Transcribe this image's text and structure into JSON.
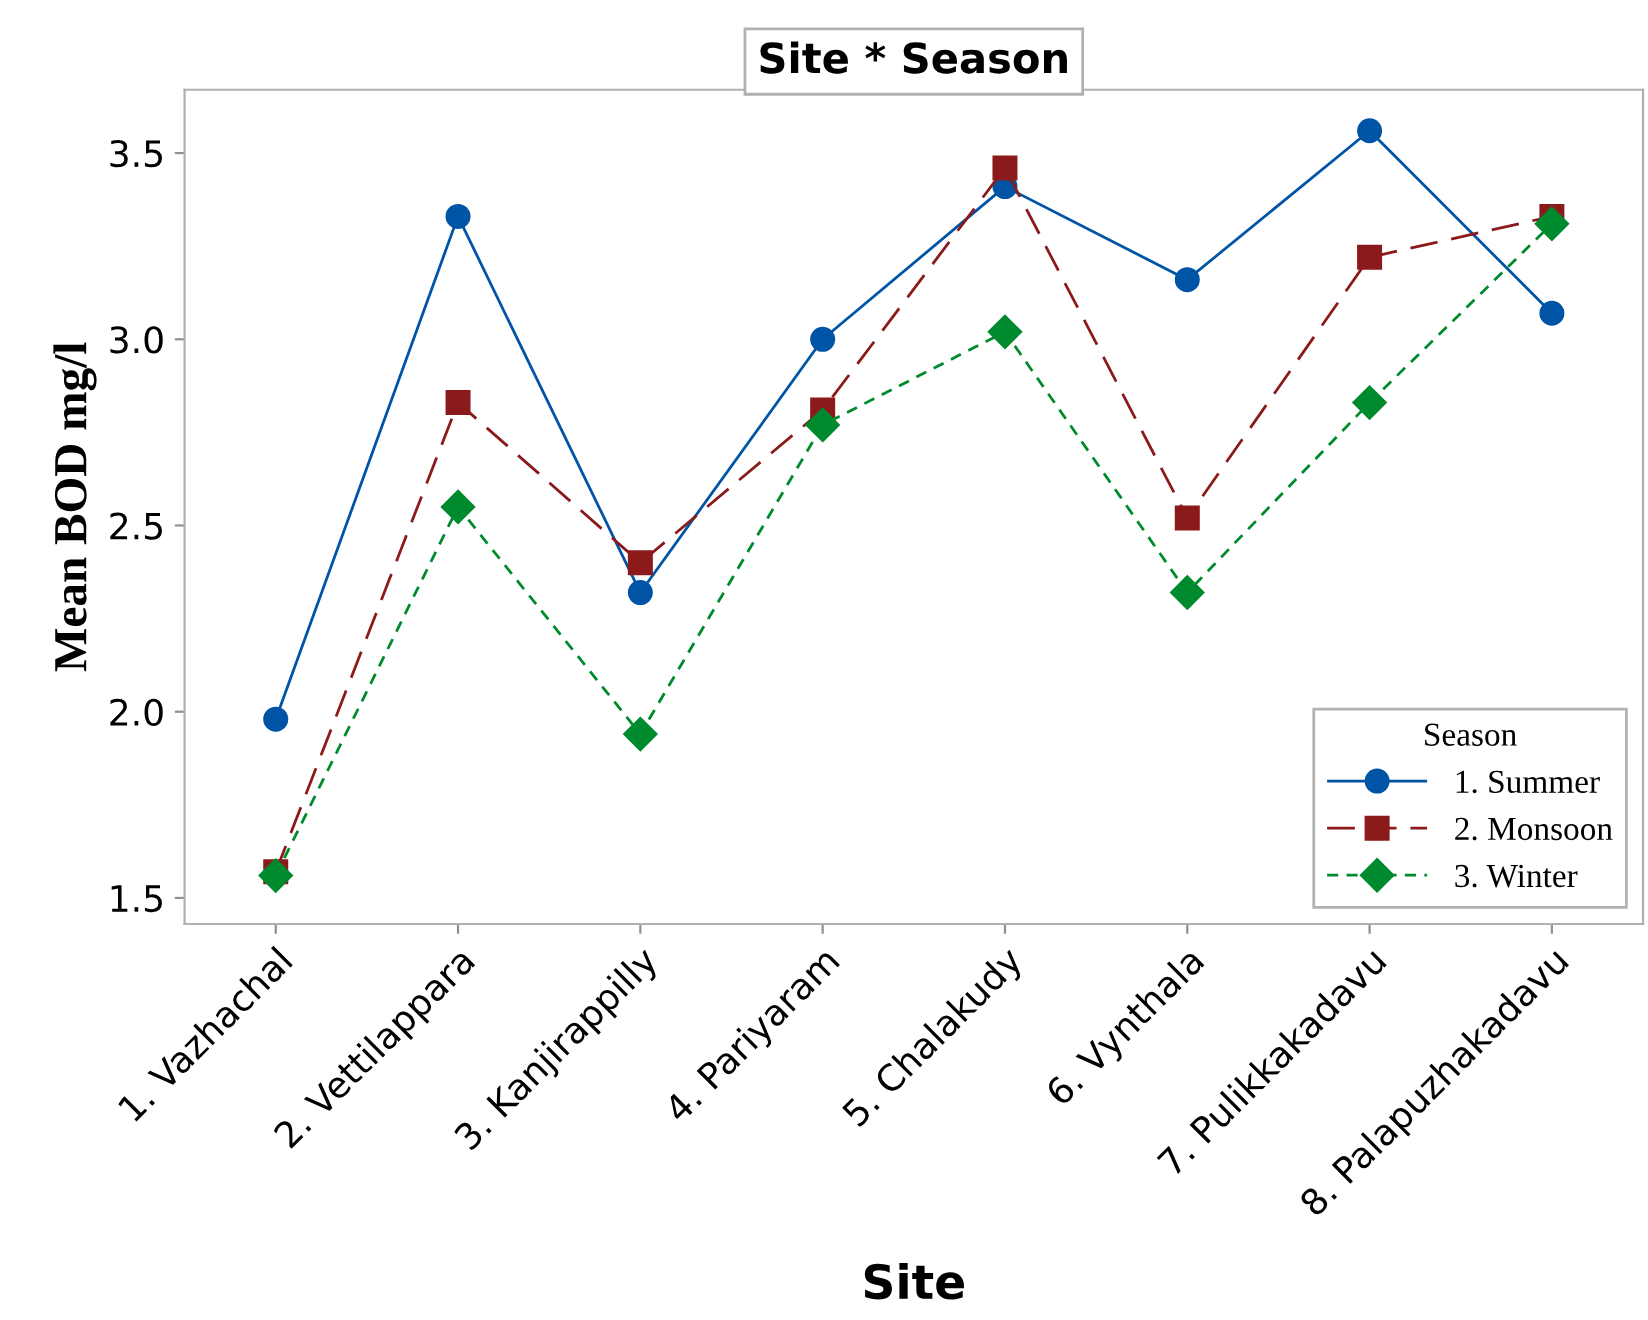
{
  "chart_data": {
    "type": "line",
    "title": "Site * Season",
    "xlabel": "Site",
    "ylabel": "Mean BOD mg/l",
    "legend_title": "Season",
    "categories": [
      "1. Vazhachal",
      "2. Vettilappara",
      "3. Kanjirappilly",
      "4. Pariyaram",
      "5. Chalakudy",
      "6. Vynthala",
      "7. Pulikkakadavu",
      "8. Palapuzhakadavu"
    ],
    "series": [
      {
        "name": "1. Summer",
        "color": "#0054a6",
        "marker": "circle",
        "line_style": "solid",
        "values": [
          1.98,
          3.33,
          2.32,
          3.0,
          3.41,
          3.16,
          3.56,
          3.07
        ]
      },
      {
        "name": "2. Monsoon",
        "color": "#8b1a1a",
        "marker": "square",
        "line_style": "dashed",
        "values": [
          1.57,
          2.83,
          2.4,
          2.81,
          3.46,
          2.52,
          3.22,
          3.33
        ]
      },
      {
        "name": "3. Winter",
        "color": "#008a2e",
        "marker": "diamond",
        "line_style": "dotted",
        "values": [
          1.56,
          2.55,
          1.94,
          2.77,
          3.02,
          2.32,
          2.83,
          3.31
        ]
      }
    ],
    "ylim": [
      1.43,
      3.67
    ],
    "yticks": [
      1.5,
      {
        "value": 2,
        "label": "2.0"
      },
      2.5,
      {
        "value": 3,
        "label": "3.0"
      },
      3.5
    ],
    "grid": false,
    "legend": "bottom right"
  }
}
